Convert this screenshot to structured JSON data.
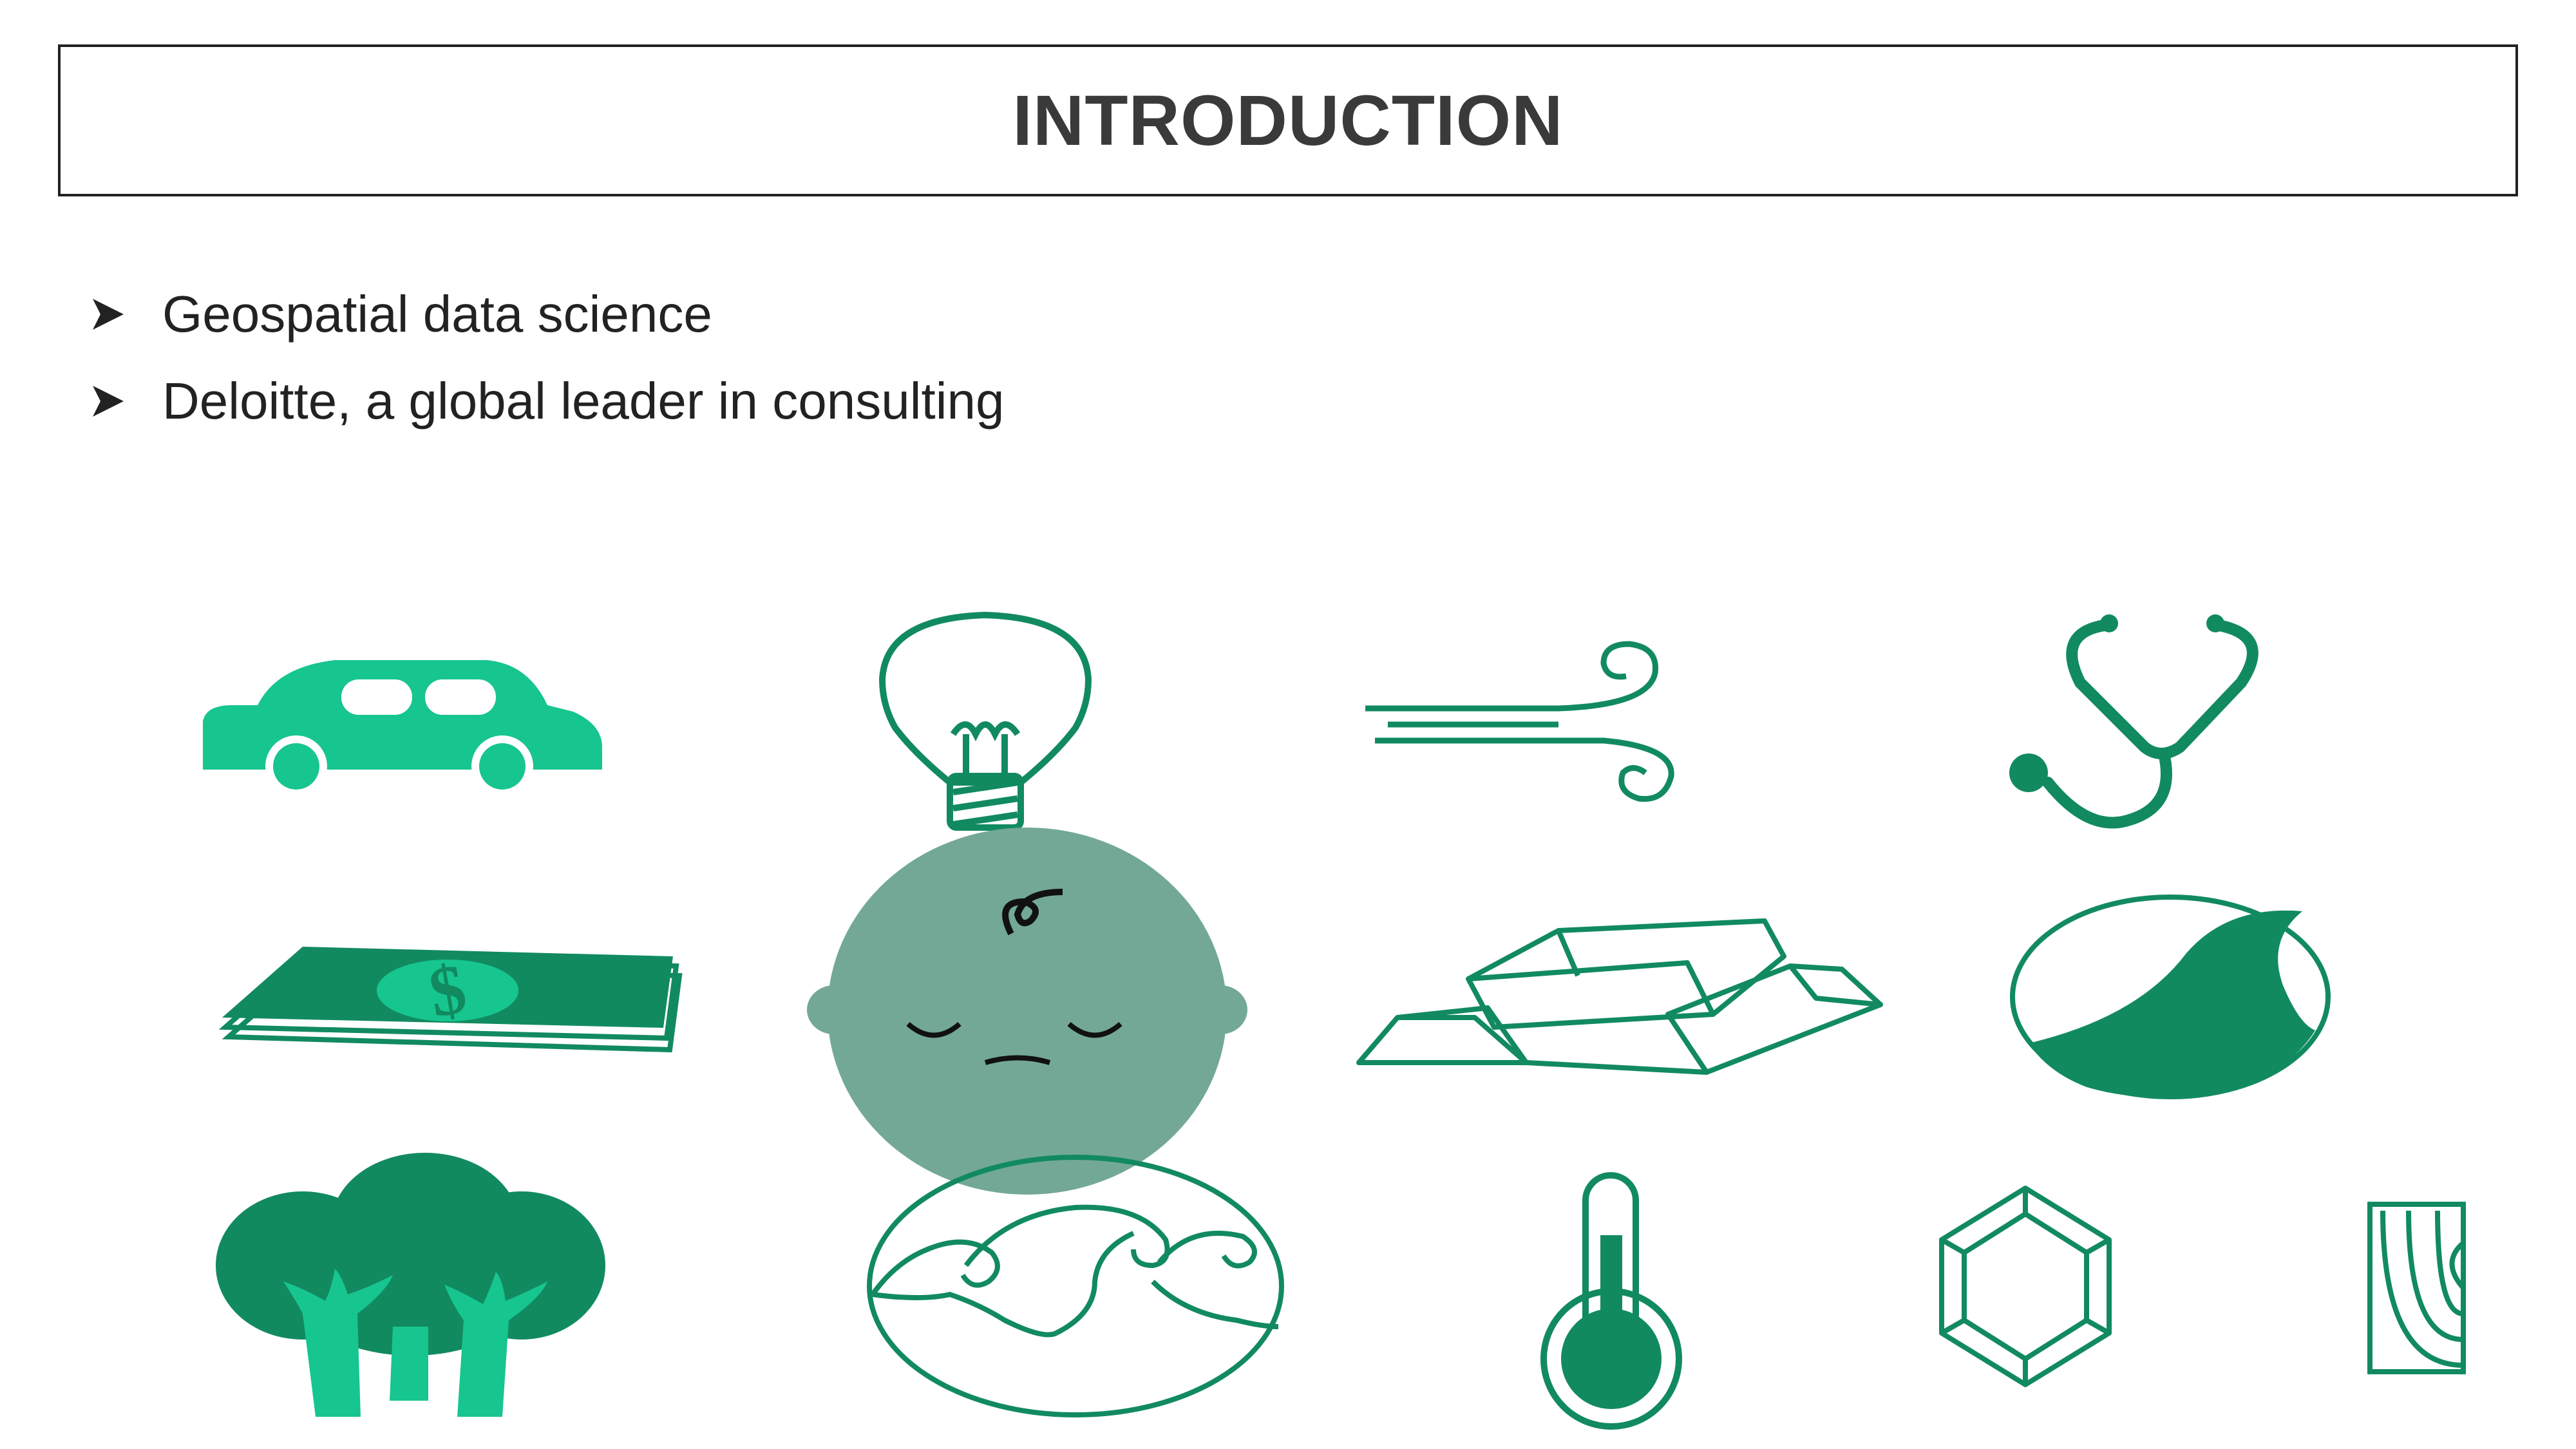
{
  "slide": {
    "title": "INTRODUCTION",
    "bullets": [
      {
        "text": "Geospatial data science"
      },
      {
        "text": "Deloitte, a global leader in consulting"
      }
    ]
  },
  "icons": [
    "car-icon",
    "lightbulb-icon",
    "wind-icon",
    "stethoscope-icon",
    "money-icon",
    "baby-face-icon",
    "gold-bars-icon",
    "wave-circle-icon",
    "trees-icon",
    "ocean-waves-icon",
    "thermometer-icon",
    "gem-icon",
    "tree-rings-icon"
  ],
  "colors": {
    "light_green": "#17c58f",
    "dark_green": "#128a60",
    "grey_green": "#73a896",
    "text": "#222222"
  }
}
